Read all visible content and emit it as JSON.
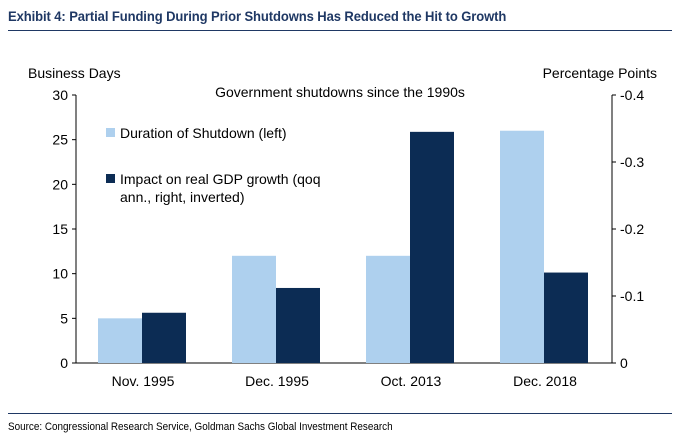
{
  "header": {
    "title": "Exhibit 4: Partial Funding During Prior Shutdowns Has Reduced the Hit to Growth"
  },
  "footer": {
    "source": "Source: Congressional Research Service, Goldman Sachs Global Investment Research"
  },
  "colors": {
    "duration": "#aed0ee",
    "impact": "#0c2c54",
    "title": "#1f3864"
  },
  "chart_data": {
    "type": "bar",
    "title": "Government shutdowns since the 1990s",
    "categories": [
      "Nov. 1995",
      "Dec. 1995",
      "Oct. 2013",
      "Dec. 2018"
    ],
    "series": [
      {
        "name": "Duration of Shutdown (left)",
        "axis": "left",
        "values": [
          5,
          12,
          12,
          26
        ]
      },
      {
        "name": "Impact on real GDP growth (qoq ann., right, inverted)",
        "legend_lines": [
          "Impact on real GDP growth (qoq",
          "ann., right, inverted)"
        ],
        "axis": "right",
        "values": [
          -0.075,
          -0.112,
          -0.345,
          -0.135
        ]
      }
    ],
    "left_axis": {
      "label": "Business Days",
      "ylim": [
        0,
        30
      ],
      "ticks": [
        "0",
        "5",
        "10",
        "15",
        "20",
        "25",
        "30"
      ]
    },
    "right_axis": {
      "label": "Percentage Points",
      "ylim": [
        0,
        -0.4
      ],
      "inverted": true,
      "ticks": [
        "0",
        "-0.1",
        "-0.2",
        "-0.3",
        "-0.4"
      ]
    },
    "legend_position": "upper-left",
    "grid": false
  }
}
